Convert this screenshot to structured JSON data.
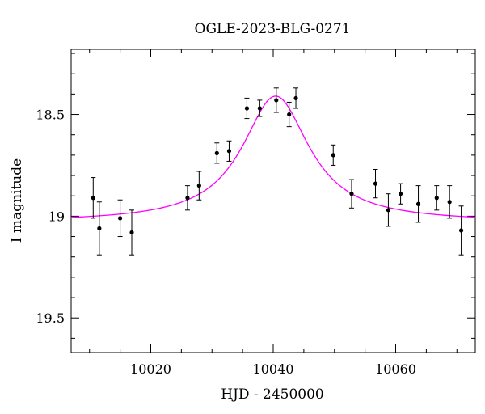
{
  "chart_data": {
    "type": "scatter",
    "title": "OGLE-2023-BLG-0271",
    "xlabel": "HJD - 2450000",
    "ylabel": "I magnitude",
    "xlim": [
      10007,
      10073
    ],
    "ylim": [
      19.67,
      18.18
    ],
    "y_inverted": true,
    "grid": false,
    "legend": "none",
    "x_ticks": [
      10020,
      10040,
      10060
    ],
    "x_tick_labels": [
      "10020",
      "10040",
      "10060"
    ],
    "y_ticks": [
      18.5,
      19,
      19.5
    ],
    "y_tick_labels": [
      "18.5",
      "19",
      "19.5"
    ],
    "points": [
      {
        "x": 10010.6,
        "y": 18.91,
        "err": 0.1
      },
      {
        "x": 10011.6,
        "y": 19.06,
        "err": 0.13
      },
      {
        "x": 10015.0,
        "y": 19.01,
        "err": 0.09
      },
      {
        "x": 10016.9,
        "y": 19.08,
        "err": 0.11
      },
      {
        "x": 10026.0,
        "y": 18.91,
        "err": 0.06
      },
      {
        "x": 10027.9,
        "y": 18.85,
        "err": 0.07
      },
      {
        "x": 10030.8,
        "y": 18.69,
        "err": 0.05
      },
      {
        "x": 10032.8,
        "y": 18.68,
        "err": 0.05
      },
      {
        "x": 10035.7,
        "y": 18.47,
        "err": 0.05
      },
      {
        "x": 10037.8,
        "y": 18.47,
        "err": 0.04
      },
      {
        "x": 10040.5,
        "y": 18.43,
        "err": 0.06
      },
      {
        "x": 10042.6,
        "y": 18.5,
        "err": 0.06
      },
      {
        "x": 10043.7,
        "y": 18.42,
        "err": 0.05
      },
      {
        "x": 10049.8,
        "y": 18.7,
        "err": 0.05
      },
      {
        "x": 10052.8,
        "y": 18.89,
        "err": 0.07
      },
      {
        "x": 10056.7,
        "y": 18.84,
        "err": 0.07
      },
      {
        "x": 10058.8,
        "y": 18.97,
        "err": 0.08
      },
      {
        "x": 10060.8,
        "y": 18.89,
        "err": 0.05
      },
      {
        "x": 10063.7,
        "y": 18.94,
        "err": 0.09
      },
      {
        "x": 10066.7,
        "y": 18.91,
        "err": 0.06
      },
      {
        "x": 10068.8,
        "y": 18.93,
        "err": 0.08
      },
      {
        "x": 10070.7,
        "y": 19.07,
        "err": 0.12
      }
    ],
    "model": {
      "type": "line",
      "color": "#ff00ff",
      "baseline": 19.03,
      "peak_x": 10040.4,
      "peak_y": 18.41,
      "width": 12.0
    },
    "colors": {
      "points": "#000000",
      "model": "#ff00ff",
      "axes": "#000000"
    }
  }
}
